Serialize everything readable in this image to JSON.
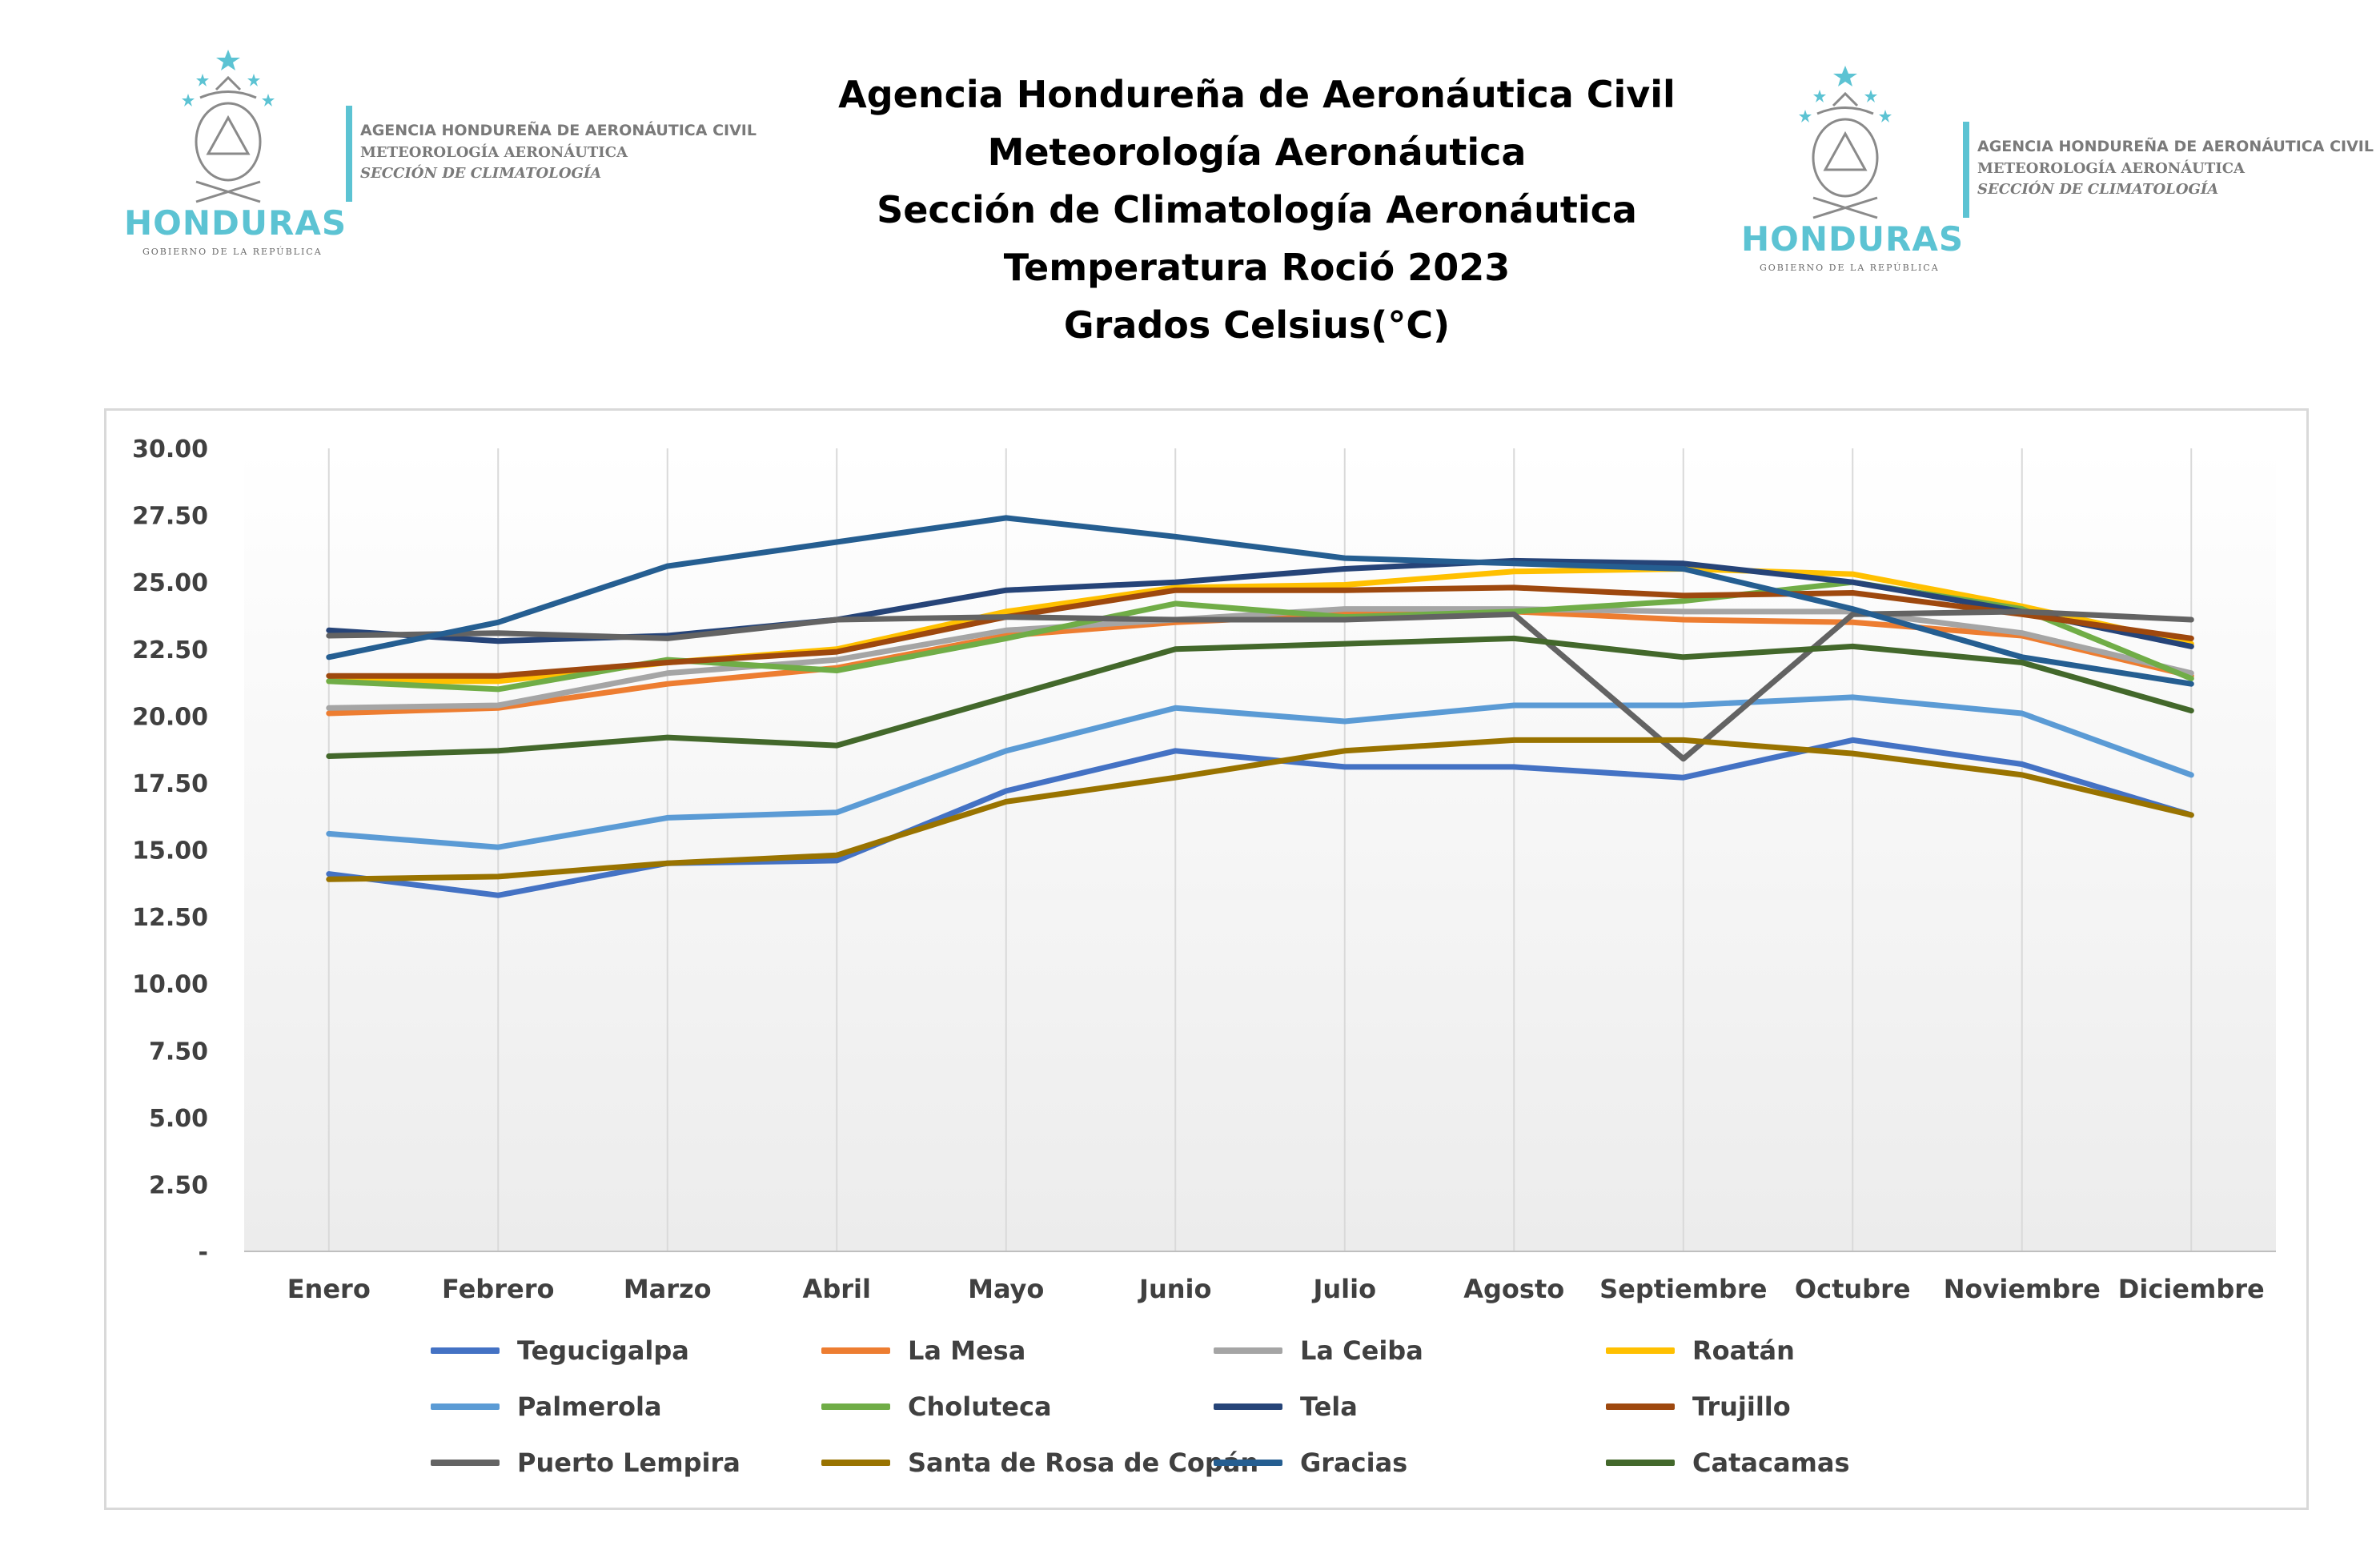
{
  "header": {
    "title_lines": [
      "Agencia Hondureña de Aeronáutica Civil",
      "Meteorología Aeronáutica",
      "Sección de Climatología Aeronáutica",
      "Temperatura Roció 2023",
      "Grados Celsius(°C)"
    ]
  },
  "logo": {
    "country": "HONDURAS",
    "government": "GOBIERNO DE LA REPÚBLICA",
    "agency": "AGENCIA HONDUREÑA DE AERONÁUTICA CIVIL",
    "department": "METEOROLOGÍA AERONÁUTICA",
    "section": "SECCIÓN DE CLIMATOLOGÍA",
    "brand_color": "#5cc3d3"
  },
  "chart_data": {
    "type": "line",
    "title": "Temperatura Roció 2023",
    "ylim": [
      0,
      30
    ],
    "y_ticks": [
      "-",
      "2.50",
      "5.00",
      "7.50",
      "10.00",
      "12.50",
      "15.00",
      "17.50",
      "20.00",
      "22.50",
      "25.00",
      "27.50",
      "30.00"
    ],
    "y_tick_values": [
      0,
      2.5,
      5,
      7.5,
      10,
      12.5,
      15,
      17.5,
      20,
      22.5,
      25,
      27.5,
      30
    ],
    "grid": "vertical",
    "legend_position": "bottom",
    "categories": [
      "Enero",
      "Febrero",
      "Marzo",
      "Abril",
      "Mayo",
      "Junio",
      "Julio",
      "Agosto",
      "Septiembre",
      "Octubre",
      "Noviembre",
      "Diciembre"
    ],
    "series": [
      {
        "name": "Tegucigalpa",
        "color": "#4472c4",
        "values": [
          14.1,
          13.3,
          14.5,
          14.6,
          17.2,
          18.7,
          18.1,
          18.1,
          17.7,
          19.1,
          18.2,
          16.3
        ]
      },
      {
        "name": "La Mesa",
        "color": "#ed7d31",
        "values": [
          20.1,
          20.3,
          21.2,
          21.8,
          23.0,
          23.5,
          23.8,
          23.9,
          23.6,
          23.5,
          23.0,
          21.5
        ]
      },
      {
        "name": "La Ceiba",
        "color": "#a5a5a5",
        "values": [
          20.3,
          20.4,
          21.6,
          22.1,
          23.2,
          23.6,
          24.0,
          24.0,
          23.9,
          23.9,
          23.1,
          21.6
        ]
      },
      {
        "name": "Roatán",
        "color": "#ffc000",
        "values": [
          21.3,
          21.3,
          22.0,
          22.5,
          23.9,
          24.8,
          24.9,
          25.4,
          25.5,
          25.3,
          24.1,
          22.7
        ]
      },
      {
        "name": "Palmerola",
        "color": "#5b9bd5",
        "values": [
          15.6,
          15.1,
          16.2,
          16.4,
          18.7,
          20.3,
          19.8,
          20.4,
          20.4,
          20.7,
          20.1,
          17.8
        ]
      },
      {
        "name": "Choluteca",
        "color": "#70ad47",
        "values": [
          21.3,
          21.0,
          22.1,
          21.7,
          22.9,
          24.2,
          23.7,
          23.9,
          24.3,
          25.0,
          24.0,
          21.4
        ]
      },
      {
        "name": "Tela",
        "color": "#264478",
        "values": [
          23.2,
          22.8,
          23.0,
          23.6,
          24.7,
          25.0,
          25.5,
          25.8,
          25.7,
          25.0,
          23.9,
          22.6
        ]
      },
      {
        "name": "Trujillo",
        "color": "#9e480e",
        "values": [
          21.5,
          21.5,
          22.0,
          22.4,
          23.7,
          24.7,
          24.7,
          24.8,
          24.5,
          24.6,
          23.8,
          22.9
        ]
      },
      {
        "name": "Puerto Lempira",
        "color": "#636363",
        "values": [
          23.0,
          23.1,
          22.9,
          23.6,
          23.7,
          23.6,
          23.6,
          23.8,
          18.4,
          23.8,
          23.9,
          23.6
        ]
      },
      {
        "name": "Santa de Rosa de Copán",
        "color": "#997300",
        "values": [
          13.9,
          14.0,
          14.5,
          14.8,
          16.8,
          17.7,
          18.7,
          19.1,
          19.1,
          18.6,
          17.8,
          16.3
        ]
      },
      {
        "name": "Gracias",
        "color": "#255e91",
        "values": [
          22.2,
          23.5,
          25.6,
          26.5,
          27.4,
          26.7,
          25.9,
          25.7,
          25.5,
          24.0,
          22.2,
          21.2
        ]
      },
      {
        "name": "Catacamas",
        "color": "#43682b",
        "values": [
          18.5,
          18.7,
          19.2,
          18.9,
          20.7,
          22.5,
          22.7,
          22.9,
          22.2,
          22.6,
          22.0,
          20.2
        ]
      }
    ]
  }
}
